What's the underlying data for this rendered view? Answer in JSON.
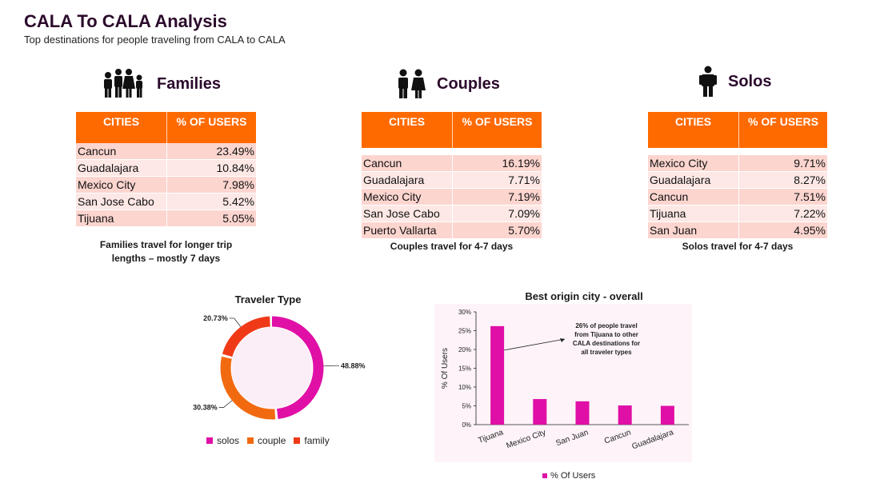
{
  "header": {
    "title": "CALA To CALA Analysis",
    "subtitle": "Top destinations for people traveling from CALA to CALA"
  },
  "table_headers": {
    "cities": "CITIES",
    "pct": "% OF USERS"
  },
  "groups": [
    {
      "label": "Families",
      "icon": "family-icon",
      "rows": [
        {
          "city": "Cancun",
          "pct": "23.49%"
        },
        {
          "city": "Guadalajara",
          "pct": "10.84%"
        },
        {
          "city": "Mexico City",
          "pct": "7.98%"
        },
        {
          "city": "San Jose Cabo",
          "pct": "5.42%"
        },
        {
          "city": "Tijuana",
          "pct": "5.05%"
        }
      ],
      "note_line1": "Families travel for longer trip",
      "note_line2": "lengths – mostly 7 days"
    },
    {
      "label": "Couples",
      "icon": "couple-icon",
      "rows": [
        {
          "city": "Cancun",
          "pct": "16.19%"
        },
        {
          "city": "Guadalajara",
          "pct": "7.71%"
        },
        {
          "city": "Mexico City",
          "pct": "7.19%"
        },
        {
          "city": "San Jose Cabo",
          "pct": "7.09%"
        },
        {
          "city": "Puerto Vallarta",
          "pct": "5.70%"
        }
      ],
      "note_line1": "Couples travel for 4-7 days"
    },
    {
      "label": "Solos",
      "icon": "solo-person-icon",
      "rows": [
        {
          "city": "Mexico City",
          "pct": "9.71%"
        },
        {
          "city": "Guadalajara",
          "pct": "8.27%"
        },
        {
          "city": "Cancun",
          "pct": "7.51%"
        },
        {
          "city": "Tijuana",
          "pct": "7.22%"
        },
        {
          "city": "San Juan",
          "pct": "4.95%"
        }
      ],
      "note_line1": "Solos travel for 4-7 days"
    }
  ],
  "colors": {
    "accent": "#ff6a00",
    "magenta": "#e00fa6",
    "orange": "#f26a10",
    "red": "#f03a17",
    "title": "#2b0a2b"
  },
  "chart_data": [
    {
      "type": "pie",
      "title": "Traveler Type",
      "donut": true,
      "slices": [
        {
          "name": "solos",
          "value": 48.88,
          "label": "48.88%",
          "color": "#e00fa6"
        },
        {
          "name": "couple",
          "value": 30.38,
          "label": "30.38%",
          "color": "#f26a10"
        },
        {
          "name": "family",
          "value": 20.73,
          "label": "20.73%",
          "color": "#f03a17"
        }
      ],
      "legend": "bottom"
    },
    {
      "type": "bar",
      "title": "Best origin city - overall",
      "categories": [
        "Tijuana",
        "Mexico City",
        "San Juan",
        "Cancun",
        "Guadalajara"
      ],
      "series": [
        {
          "name": "% Of Users",
          "values": [
            26.2,
            6.8,
            6.2,
            5.1,
            5.0
          ],
          "color": "#e00fa6"
        }
      ],
      "ylabel": "% Of Users",
      "ylim": [
        0,
        30
      ],
      "yticks": [
        "0%",
        "5%",
        "10%",
        "15%",
        "20%",
        "25%",
        "30%"
      ],
      "annotation_line1": "26% of people travel",
      "annotation_line2": "from Tijuana to other",
      "annotation_line3": "CALA destinations for",
      "annotation_line4": "all traveler types",
      "legend": "bottom"
    }
  ]
}
